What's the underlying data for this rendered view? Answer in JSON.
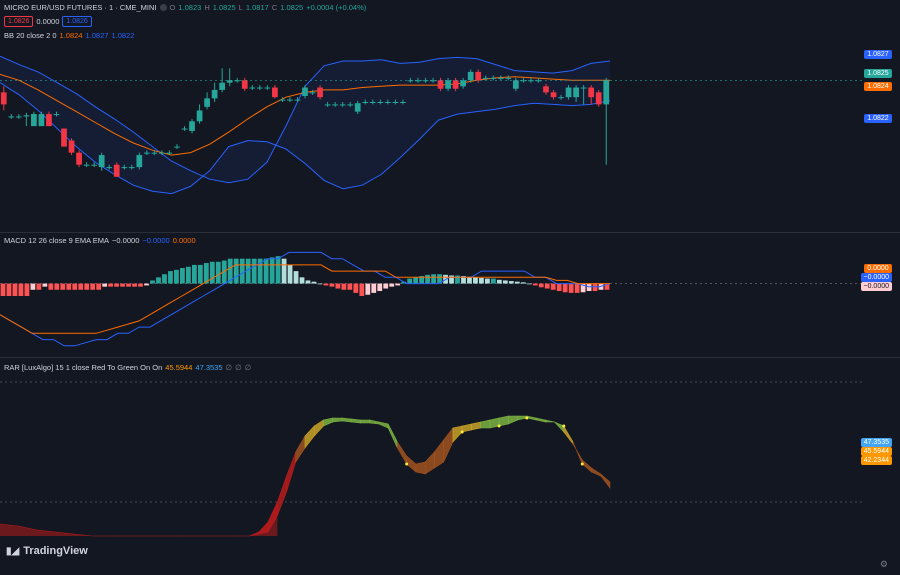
{
  "header": {
    "symbol": "MICRO EUR/USD FUTURES · 1 · CME_MINI",
    "o_label": "O",
    "o": "1.0823",
    "h_label": "H",
    "h": "1.0825",
    "l_label": "L",
    "l": "1.0817",
    "c_label": "C",
    "c": "1.0825",
    "change": "+0.0004 (+0.04%)",
    "bid": "1.0826",
    "spread": "0.0000",
    "ask": "1.0826"
  },
  "legends": {
    "bb": {
      "name": "BB 20 close 2 0",
      "v1": "1.0824",
      "v2": "1.0827",
      "v3": "1.0822"
    },
    "macd": {
      "name": "MACD 12 26 close 9 EMA EMA",
      "v1": "−0.0000",
      "v2": "−0.0000",
      "v3": "0.0000"
    },
    "rar": {
      "name": "RAR [LuxAlgo] 15 1 close Red To Green On On",
      "v1": "45.5944",
      "v2": "47.3535"
    }
  },
  "badges": {
    "price": [
      "1.0827",
      "1.0825",
      "1.0824",
      "1.0822"
    ],
    "macd": [
      "0.0000",
      "−0.0000",
      "−0.0000"
    ],
    "rar": [
      "47.3535",
      "45.5944",
      "42.2344"
    ]
  },
  "colors": {
    "bg": "#131722",
    "up": "#26a69a",
    "down": "#f23645",
    "bb_band": "#2962ff",
    "bb_basis": "#ff6d00",
    "macd_line": "#2962ff",
    "signal_line": "#ff6d00",
    "hist_up_strong": "#26a69a",
    "hist_up_weak": "#b2dfdb",
    "hist_down_strong": "#ff5252",
    "hist_down_weak": "#ffcdd2",
    "rar_red": "#b71c1c",
    "rar_yellow": "#c9a227",
    "rar_green": "#7cb342"
  },
  "brand": "TradingView",
  "chart_data": [
    {
      "type": "candlestick",
      "title": "MICRO EUR/USD FUTURES · 1 · CME_MINI",
      "ylim": [
        1.0813,
        1.083
      ],
      "candles": [
        {
          "o": 1.0824,
          "c": 1.0823,
          "h": 1.08245,
          "l": 1.08225
        },
        {
          "o": 1.0822,
          "c": 1.0822,
          "h": 1.08222,
          "l": 1.08218
        },
        {
          "o": 1.0822,
          "c": 1.0822,
          "h": 1.08222,
          "l": 1.08218
        },
        {
          "o": 1.0822,
          "c": 1.08221,
          "h": 1.08223,
          "l": 1.08212
        },
        {
          "o": 1.08212,
          "c": 1.08222,
          "h": 1.08224,
          "l": 1.08212
        },
        {
          "o": 1.08212,
          "c": 1.08222,
          "h": 1.08224,
          "l": 1.08212
        },
        {
          "o": 1.08222,
          "c": 1.08212,
          "h": 1.08224,
          "l": 1.08212
        },
        {
          "o": 1.08222,
          "c": 1.08222,
          "h": 1.08224,
          "l": 1.0822
        },
        {
          "o": 1.0821,
          "c": 1.08195,
          "h": 1.0821,
          "l": 1.08195
        },
        {
          "o": 1.082,
          "c": 1.0819,
          "h": 1.08202,
          "l": 1.08188
        },
        {
          "o": 1.0819,
          "c": 1.0818,
          "h": 1.08192,
          "l": 1.08178
        },
        {
          "o": 1.0818,
          "c": 1.0818,
          "h": 1.08182,
          "l": 1.08178
        },
        {
          "o": 1.0818,
          "c": 1.0818,
          "h": 1.08182,
          "l": 1.08178
        },
        {
          "o": 1.08178,
          "c": 1.08188,
          "h": 1.0819,
          "l": 1.08175
        },
        {
          "o": 1.08178,
          "c": 1.08178,
          "h": 1.0818,
          "l": 1.08176
        },
        {
          "o": 1.0818,
          "c": 1.0817,
          "h": 1.08182,
          "l": 1.0817
        },
        {
          "o": 1.08178,
          "c": 1.08178,
          "h": 1.0818,
          "l": 1.08176
        },
        {
          "o": 1.08178,
          "c": 1.08178,
          "h": 1.0818,
          "l": 1.08176
        },
        {
          "o": 1.08178,
          "c": 1.08188,
          "h": 1.0819,
          "l": 1.08176
        },
        {
          "o": 1.0819,
          "c": 1.0819,
          "h": 1.08192,
          "l": 1.08188
        },
        {
          "o": 1.0819,
          "c": 1.0819,
          "h": 1.08192,
          "l": 1.08188
        },
        {
          "o": 1.0819,
          "c": 1.0819,
          "h": 1.08192,
          "l": 1.08188
        },
        {
          "o": 1.0819,
          "c": 1.0819,
          "h": 1.08192,
          "l": 1.08188
        },
        {
          "o": 1.08195,
          "c": 1.08195,
          "h": 1.08197,
          "l": 1.08193
        },
        {
          "o": 1.0821,
          "c": 1.0821,
          "h": 1.08212,
          "l": 1.08208
        },
        {
          "o": 1.08208,
          "c": 1.08216,
          "h": 1.08218,
          "l": 1.08206
        },
        {
          "o": 1.08216,
          "c": 1.08225,
          "h": 1.0823,
          "l": 1.08214
        },
        {
          "o": 1.08228,
          "c": 1.08235,
          "h": 1.0824,
          "l": 1.08226
        },
        {
          "o": 1.08235,
          "c": 1.08242,
          "h": 1.08248,
          "l": 1.08232
        },
        {
          "o": 1.08242,
          "c": 1.08248,
          "h": 1.0826,
          "l": 1.0824
        },
        {
          "o": 1.08248,
          "c": 1.0825,
          "h": 1.0826,
          "l": 1.08245
        },
        {
          "o": 1.0825,
          "c": 1.0825,
          "h": 1.08252,
          "l": 1.08248
        },
        {
          "o": 1.0825,
          "c": 1.08243,
          "h": 1.08252,
          "l": 1.08241
        },
        {
          "o": 1.08244,
          "c": 1.08244,
          "h": 1.08246,
          "l": 1.08242
        },
        {
          "o": 1.08244,
          "c": 1.08244,
          "h": 1.08246,
          "l": 1.08242
        },
        {
          "o": 1.08244,
          "c": 1.08244,
          "h": 1.08246,
          "l": 1.08242
        },
        {
          "o": 1.08244,
          "c": 1.08236,
          "h": 1.08246,
          "l": 1.08235
        },
        {
          "o": 1.08234,
          "c": 1.08234,
          "h": 1.08236,
          "l": 1.08232
        },
        {
          "o": 1.08234,
          "c": 1.08234,
          "h": 1.08236,
          "l": 1.08232
        },
        {
          "o": 1.08234,
          "c": 1.08234,
          "h": 1.08236,
          "l": 1.08232
        },
        {
          "o": 1.08237,
          "c": 1.08244,
          "h": 1.08246,
          "l": 1.08235
        },
        {
          "o": 1.0824,
          "c": 1.0824,
          "h": 1.08242,
          "l": 1.08238
        },
        {
          "o": 1.08244,
          "c": 1.08236,
          "h": 1.08246,
          "l": 1.08234
        },
        {
          "o": 1.0823,
          "c": 1.0823,
          "h": 1.08232,
          "l": 1.08228
        },
        {
          "o": 1.0823,
          "c": 1.0823,
          "h": 1.08232,
          "l": 1.08228
        },
        {
          "o": 1.0823,
          "c": 1.0823,
          "h": 1.08232,
          "l": 1.08228
        },
        {
          "o": 1.0823,
          "c": 1.0823,
          "h": 1.08232,
          "l": 1.08228
        },
        {
          "o": 1.08224,
          "c": 1.08231,
          "h": 1.08233,
          "l": 1.08222
        },
        {
          "o": 1.08232,
          "c": 1.08232,
          "h": 1.08234,
          "l": 1.0823
        },
        {
          "o": 1.08232,
          "c": 1.08232,
          "h": 1.08234,
          "l": 1.0823
        },
        {
          "o": 1.08232,
          "c": 1.08232,
          "h": 1.08234,
          "l": 1.0823
        },
        {
          "o": 1.08232,
          "c": 1.08232,
          "h": 1.08234,
          "l": 1.0823
        },
        {
          "o": 1.08232,
          "c": 1.08232,
          "h": 1.08234,
          "l": 1.0823
        },
        {
          "o": 1.08232,
          "c": 1.08232,
          "h": 1.08234,
          "l": 1.0823
        },
        {
          "o": 1.0825,
          "c": 1.0825,
          "h": 1.08252,
          "l": 1.08248
        },
        {
          "o": 1.0825,
          "c": 1.0825,
          "h": 1.08252,
          "l": 1.08248
        },
        {
          "o": 1.0825,
          "c": 1.0825,
          "h": 1.08252,
          "l": 1.08248
        },
        {
          "o": 1.0825,
          "c": 1.0825,
          "h": 1.08252,
          "l": 1.08248
        },
        {
          "o": 1.0825,
          "c": 1.08243,
          "h": 1.08252,
          "l": 1.08241
        },
        {
          "o": 1.08243,
          "c": 1.0825,
          "h": 1.08252,
          "l": 1.08241
        },
        {
          "o": 1.0825,
          "c": 1.08243,
          "h": 1.08252,
          "l": 1.08241
        },
        {
          "o": 1.08245,
          "c": 1.0825,
          "h": 1.08252,
          "l": 1.08243
        },
        {
          "o": 1.0825,
          "c": 1.08257,
          "h": 1.08259,
          "l": 1.08248
        },
        {
          "o": 1.08257,
          "c": 1.0825,
          "h": 1.08259,
          "l": 1.08248
        },
        {
          "o": 1.08252,
          "c": 1.08252,
          "h": 1.08254,
          "l": 1.0825
        },
        {
          "o": 1.08252,
          "c": 1.08252,
          "h": 1.08254,
          "l": 1.0825
        },
        {
          "o": 1.08252,
          "c": 1.08252,
          "h": 1.08254,
          "l": 1.0825
        },
        {
          "o": 1.08252,
          "c": 1.08252,
          "h": 1.08254,
          "l": 1.0825
        },
        {
          "o": 1.08243,
          "c": 1.0825,
          "h": 1.08252,
          "l": 1.08241
        },
        {
          "o": 1.0825,
          "c": 1.0825,
          "h": 1.08252,
          "l": 1.08248
        },
        {
          "o": 1.0825,
          "c": 1.0825,
          "h": 1.08252,
          "l": 1.08248
        },
        {
          "o": 1.0825,
          "c": 1.0825,
          "h": 1.08252,
          "l": 1.08248
        },
        {
          "o": 1.08245,
          "c": 1.0824,
          "h": 1.08247,
          "l": 1.08238
        },
        {
          "o": 1.0824,
          "c": 1.08236,
          "h": 1.08242,
          "l": 1.08234
        },
        {
          "o": 1.08236,
          "c": 1.08236,
          "h": 1.08238,
          "l": 1.08234
        },
        {
          "o": 1.08236,
          "c": 1.08244,
          "h": 1.08246,
          "l": 1.08234
        },
        {
          "o": 1.08236,
          "c": 1.08244,
          "h": 1.08246,
          "l": 1.08232
        },
        {
          "o": 1.08244,
          "c": 1.08244,
          "h": 1.08246,
          "l": 1.0823
        },
        {
          "o": 1.08244,
          "c": 1.08236,
          "h": 1.08246,
          "l": 1.0823
        },
        {
          "o": 1.0824,
          "c": 1.0823,
          "h": 1.08242,
          "l": 1.08228
        },
        {
          "o": 1.0823,
          "c": 1.0825,
          "h": 1.08252,
          "l": 1.0818
        }
      ],
      "bb_upper": [
        1.0827,
        1.08263,
        1.08257,
        1.08248,
        1.08239,
        1.08228,
        1.08218,
        1.08207,
        1.08195,
        1.08183,
        1.08175,
        1.08168,
        1.08165,
        1.08168,
        1.08182,
        1.08212,
        1.08245,
        1.08262,
        1.08266,
        1.08266,
        1.08267,
        1.08264,
        1.08265,
        1.08268,
        1.08269,
        1.08268,
        1.08263,
        1.08258,
        1.08257,
        1.08256,
        1.08258,
        1.08264,
        1.08266
      ],
      "bb_basis": [
        1.08255,
        1.0825,
        1.08242,
        1.08233,
        1.08224,
        1.08215,
        1.08206,
        1.08198,
        1.08192,
        1.08188,
        1.0819,
        1.08197,
        1.08207,
        1.08218,
        1.08228,
        1.08236,
        1.0824,
        1.08242,
        1.08242,
        1.08244,
        1.08245,
        1.08246,
        1.08246,
        1.08246,
        1.08247,
        1.0825,
        1.08252,
        1.08253,
        1.08252,
        1.08251,
        1.0825,
        1.0825,
        1.0825
      ],
      "bb_lower": [
        1.08248,
        1.08238,
        1.08225,
        1.0821,
        1.08195,
        1.08182,
        1.08172,
        1.08163,
        1.08158,
        1.08156,
        1.08162,
        1.08175,
        1.08195,
        1.082,
        1.08199,
        1.08193,
        1.08181,
        1.08167,
        1.0816,
        1.08163,
        1.08172,
        1.08186,
        1.08201,
        1.08217,
        1.08222,
        1.08224,
        1.08226,
        1.08229,
        1.08231,
        1.0823,
        1.08229,
        1.0823,
        1.08233
      ]
    },
    {
      "type": "bar",
      "title": "MACD 12 26 close 9 EMA EMA",
      "ylim": [
        -0.00011,
        7e-05
      ],
      "histogram": [
        -2e-05,
        -2e-05,
        -2e-05,
        -2e-05,
        -2e-05,
        -1e-05,
        -1e-05,
        -5e-06,
        -1e-05,
        -1e-05,
        -1e-05,
        -1e-05,
        -1e-05,
        -1e-05,
        -1e-05,
        -1e-05,
        -1e-05,
        -5e-06,
        -5e-06,
        -5e-06,
        -5e-06,
        -5e-06,
        -5e-06,
        -5e-06,
        -3e-06,
        5e-06,
        1e-05,
        1.5e-05,
        2e-05,
        2.2e-05,
        2.5e-05,
        2.7e-05,
        3e-05,
        3e-05,
        3.3e-05,
        3.5e-05,
        3.5e-05,
        3.7e-05,
        4e-05,
        4e-05,
        4e-05,
        4e-05,
        4e-05,
        4e-05,
        4e-05,
        4.2e-05,
        4.4e-05,
        4e-05,
        3e-05,
        2e-05,
        1e-05,
        5e-06,
        3e-06,
        0.0,
        -3e-06,
        -5e-06,
        -8e-06,
        -1e-05,
        -1e-05,
        -1.5e-05,
        -2e-05,
        -1.8e-05,
        -1.5e-05,
        -1.2e-05,
        -8e-06,
        -5e-06,
        -3e-06,
        3e-06,
        8e-06,
        1e-05,
        1.2e-05,
        1.4e-05,
        1.5e-05,
        1.5e-05,
        1.4e-05,
        1.3e-05,
        1.3e-05,
        1.2e-05,
        1.1e-05,
        1e-05,
        9e-06,
        8e-06,
        8e-06,
        6e-06,
        5e-06,
        4e-06,
        3e-06,
        2e-06,
        0.0,
        -3e-06,
        -6e-06,
        -8e-06,
        -1e-05,
        -1.2e-05,
        -1.4e-05,
        -1.5e-05,
        -1.5e-05,
        -1.4e-05,
        -1.2e-05,
        -1.2e-05,
        -1e-05,
        -1e-05
      ],
      "macd": [
        -5e-05,
        -6e-05,
        -7e-05,
        -8e-05,
        -9e-05,
        -9e-05,
        -0.0001,
        -0.0001,
        -9.5e-05,
        -9e-05,
        -9e-05,
        -8e-05,
        -8e-05,
        -7e-05,
        -7e-05,
        -6e-05,
        -5e-05,
        -4e-05,
        -3e-05,
        -2e-05,
        -1e-05,
        0.0,
        1e-05,
        2e-05,
        3e-05,
        4e-05,
        4e-05,
        5e-05,
        5e-05,
        5e-05,
        5e-05,
        4e-05,
        4e-05,
        3e-05,
        2e-05,
        2e-05,
        1e-05,
        1e-05,
        0.0,
        0.0,
        0.0,
        0.0,
        1e-05,
        1e-05,
        1e-05,
        2e-05,
        2e-05,
        2e-05,
        2e-05,
        2e-05,
        1e-05,
        1e-05,
        0.0,
        0.0,
        0.0,
        -5e-06,
        -5e-06,
        0.0
      ],
      "signal": [
        -5e-05,
        -6e-05,
        -7e-05,
        -8e-05,
        -8e-05,
        -8e-05,
        -8e-05,
        -8e-05,
        -8e-05,
        -8e-05,
        -7.5e-05,
        -7e-05,
        -6.5e-05,
        -6e-05,
        -5e-05,
        -4e-05,
        -3e-05,
        -2e-05,
        -1e-05,
        0.0,
        1e-05,
        2e-05,
        3e-05,
        3e-05,
        3e-05,
        3e-05,
        3e-05,
        3e-05,
        3e-05,
        3e-05,
        3e-05,
        2e-05,
        2e-05,
        2e-05,
        2e-05,
        2e-05,
        2e-05,
        1e-05,
        1e-05,
        1e-05,
        1e-05,
        1e-05,
        1e-05,
        1e-05,
        1e-05,
        1e-05,
        1e-05,
        1e-05,
        1e-05,
        1e-05,
        1e-05,
        1e-05,
        5e-06,
        5e-06,
        0.0,
        0.0,
        0.0,
        0.0
      ]
    },
    {
      "type": "area",
      "title": "RAR [LuxAlgo] 15 1 close Red To Green On On",
      "ylim": [
        0,
        100
      ],
      "fast": [
        24,
        23.5,
        23,
        22,
        21,
        20.5,
        20,
        19.5,
        19,
        18.5,
        18,
        18,
        18,
        18,
        18,
        18,
        18,
        18,
        18,
        18,
        18,
        18,
        18,
        18,
        18,
        18,
        18,
        18,
        19,
        20,
        28,
        40,
        55,
        62,
        68,
        73,
        75,
        75.5,
        75,
        74.5,
        74.5,
        74,
        72,
        62,
        54,
        50,
        49,
        52,
        55,
        65,
        70,
        71,
        72,
        72,
        73,
        74,
        76,
        77,
        76,
        75,
        75,
        73,
        65,
        54,
        50,
        48,
        42
      ],
      "slow": [
        24,
        23.5,
        23,
        22,
        21,
        20.5,
        20,
        19.5,
        19,
        18.5,
        18,
        18,
        18,
        18,
        18,
        18,
        18,
        18,
        18,
        18,
        18,
        18,
        18,
        18,
        18,
        18,
        18,
        18,
        20,
        25,
        35,
        48,
        60,
        68,
        73,
        76,
        77,
        77,
        76.5,
        76,
        76,
        75,
        74,
        65,
        58,
        54,
        55,
        60,
        66,
        72,
        73,
        74,
        75,
        76,
        77,
        78,
        78,
        78,
        77,
        76,
        75,
        70,
        64,
        56,
        52,
        49,
        45
      ]
    }
  ]
}
